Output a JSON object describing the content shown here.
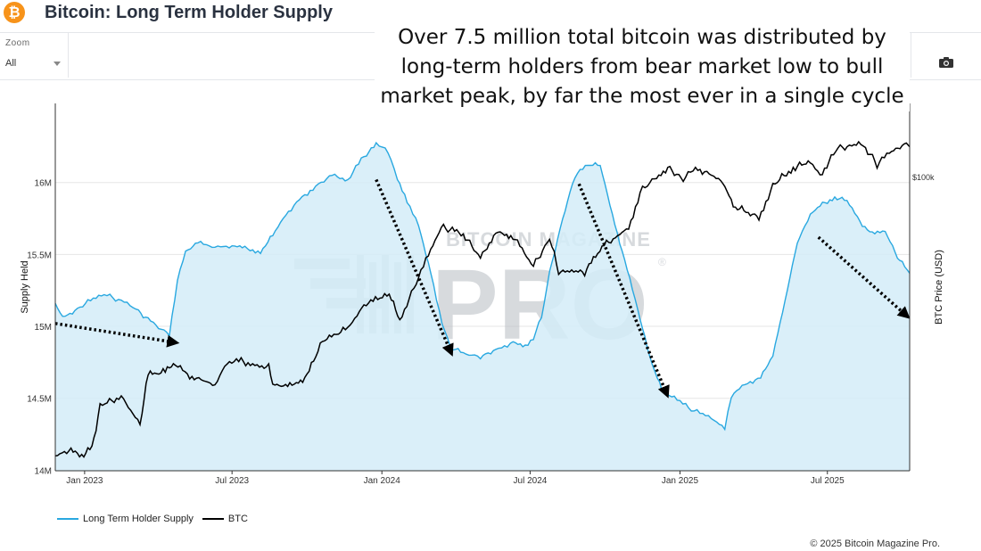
{
  "header": {
    "logo_glyph": "₿",
    "title": "Bitcoin: Long Term Holder Supply"
  },
  "toolbar": {
    "zoom_label": "Zoom",
    "zoom_value": "All"
  },
  "annotation": {
    "text": "Over 7.5 million total bitcoin was distributed by long-term holders from bear market low to bull market peak, by far the most ever in a single cycle"
  },
  "copyright": "© 2025 Bitcoin Magazine Pro.",
  "colors": {
    "lths_line": "#29a8e0",
    "lths_fill": "#d4ecf8",
    "btc_line": "#000000",
    "grid": "#e6e6e6",
    "watermark": "#b7bcc3",
    "logo": "#f7931a"
  },
  "chart_data": {
    "type": "area",
    "title": "Bitcoin: Long Term Holder Supply",
    "xlabel": "",
    "ylabel": "Supply Held",
    "ylabel_right": "BTC Price (USD)",
    "ylim": [
      13.996,
      16.55
    ],
    "y_ticks": [
      14.0,
      14.5,
      15.0,
      15.5,
      16.0
    ],
    "y_tick_labels": [
      "14M",
      "14.5M",
      "15M",
      "15.5M",
      "16M"
    ],
    "right_axis": {
      "scale": "log",
      "range": [
        15000,
        160000
      ],
      "ticks": [
        100000
      ],
      "tick_labels": [
        "$100k"
      ]
    },
    "x_ticks": [
      "2023-01-01",
      "2023-07-01",
      "2024-01-01",
      "2024-07-01",
      "2025-01-01",
      "2025-07-01"
    ],
    "x_tick_labels": [
      "Jan 2023",
      "Jul 2023",
      "Jan 2024",
      "Jul 2024",
      "Jan 2025",
      "Jul 2025"
    ],
    "x_range": [
      "2022-11-26",
      "2025-10-10"
    ],
    "series": [
      {
        "name": "Long Term Holder Supply",
        "axis": "left",
        "unit": "M BTC",
        "points": [
          [
            "2022-11-26",
            15.16
          ],
          [
            "2022-12-05",
            15.06
          ],
          [
            "2022-12-20",
            15.11
          ],
          [
            "2023-01-05",
            15.17
          ],
          [
            "2023-01-25",
            15.22
          ],
          [
            "2023-02-15",
            15.18
          ],
          [
            "2023-03-05",
            15.12
          ],
          [
            "2023-03-20",
            15.05
          ],
          [
            "2023-04-05",
            14.98
          ],
          [
            "2023-04-15",
            14.95
          ],
          [
            "2023-04-25",
            15.32
          ],
          [
            "2023-05-05",
            15.52
          ],
          [
            "2023-05-20",
            15.58
          ],
          [
            "2023-06-10",
            15.55
          ],
          [
            "2023-07-01",
            15.56
          ],
          [
            "2023-07-20",
            15.54
          ],
          [
            "2023-08-05",
            15.52
          ],
          [
            "2023-08-20",
            15.63
          ],
          [
            "2023-09-05",
            15.78
          ],
          [
            "2023-09-25",
            15.9
          ],
          [
            "2023-10-15",
            15.99
          ],
          [
            "2023-11-01",
            16.05
          ],
          [
            "2023-11-20",
            16.02
          ],
          [
            "2023-12-10",
            16.18
          ],
          [
            "2023-12-25",
            16.26
          ],
          [
            "2024-01-05",
            16.24
          ],
          [
            "2024-01-12",
            16.16
          ],
          [
            "2024-01-20",
            16.02
          ],
          [
            "2024-02-01",
            15.86
          ],
          [
            "2024-02-15",
            15.7
          ],
          [
            "2024-03-01",
            15.38
          ],
          [
            "2024-03-15",
            15.02
          ],
          [
            "2024-03-25",
            14.86
          ],
          [
            "2024-04-10",
            14.81
          ],
          [
            "2024-05-01",
            14.79
          ],
          [
            "2024-05-20",
            14.84
          ],
          [
            "2024-06-10",
            14.89
          ],
          [
            "2024-06-25",
            14.87
          ],
          [
            "2024-07-05",
            14.92
          ],
          [
            "2024-07-15",
            15.06
          ],
          [
            "2024-07-25",
            15.38
          ],
          [
            "2024-08-10",
            15.75
          ],
          [
            "2024-08-25",
            16.05
          ],
          [
            "2024-09-10",
            16.12
          ],
          [
            "2024-09-25",
            16.12
          ],
          [
            "2024-10-10",
            15.78
          ],
          [
            "2024-10-25",
            15.46
          ],
          [
            "2024-11-10",
            15.12
          ],
          [
            "2024-11-25",
            14.78
          ],
          [
            "2024-12-10",
            14.55
          ],
          [
            "2024-12-25",
            14.5
          ],
          [
            "2025-01-15",
            14.42
          ],
          [
            "2025-02-05",
            14.37
          ],
          [
            "2025-02-25",
            14.3
          ],
          [
            "2025-03-05",
            14.52
          ],
          [
            "2025-03-25",
            14.61
          ],
          [
            "2025-04-10",
            14.64
          ],
          [
            "2025-04-25",
            14.8
          ],
          [
            "2025-05-10",
            15.18
          ],
          [
            "2025-05-25",
            15.58
          ],
          [
            "2025-06-10",
            15.78
          ],
          [
            "2025-06-25",
            15.85
          ],
          [
            "2025-07-10",
            15.9
          ],
          [
            "2025-07-25",
            15.87
          ],
          [
            "2025-08-10",
            15.73
          ],
          [
            "2025-08-25",
            15.64
          ],
          [
            "2025-09-10",
            15.66
          ],
          [
            "2025-09-25",
            15.48
          ],
          [
            "2025-10-10",
            15.37
          ]
        ]
      },
      {
        "name": "BTC",
        "axis": "right",
        "unit": "USD",
        "points": [
          [
            "2022-11-26",
            16500
          ],
          [
            "2022-12-10",
            17100
          ],
          [
            "2022-12-31",
            16600
          ],
          [
            "2023-01-10",
            17400
          ],
          [
            "2023-01-20",
            22700
          ],
          [
            "2023-02-15",
            24300
          ],
          [
            "2023-03-10",
            20200
          ],
          [
            "2023-03-20",
            27800
          ],
          [
            "2023-04-10",
            28300
          ],
          [
            "2023-04-20",
            29900
          ],
          [
            "2023-05-10",
            27700
          ],
          [
            "2023-06-10",
            26100
          ],
          [
            "2023-06-25",
            30300
          ],
          [
            "2023-07-15",
            30300
          ],
          [
            "2023-08-15",
            29200
          ],
          [
            "2023-08-20",
            26100
          ],
          [
            "2023-09-10",
            25800
          ],
          [
            "2023-10-01",
            27600
          ],
          [
            "2023-10-20",
            34500
          ],
          [
            "2023-11-20",
            37500
          ],
          [
            "2023-12-10",
            43700
          ],
          [
            "2024-01-10",
            46500
          ],
          [
            "2024-01-23",
            39700
          ],
          [
            "2024-02-15",
            52000
          ],
          [
            "2024-03-01",
            62000
          ],
          [
            "2024-03-14",
            72000
          ],
          [
            "2024-04-10",
            69000
          ],
          [
            "2024-05-01",
            59000
          ],
          [
            "2024-05-20",
            70000
          ],
          [
            "2024-06-10",
            68000
          ],
          [
            "2024-07-05",
            56000
          ],
          [
            "2024-07-25",
            67000
          ],
          [
            "2024-08-05",
            54000
          ],
          [
            "2024-09-06",
            54000
          ],
          [
            "2024-09-30",
            64000
          ],
          [
            "2024-10-30",
            72000
          ],
          [
            "2024-11-13",
            90000
          ],
          [
            "2024-11-25",
            96000
          ],
          [
            "2024-12-17",
            106000
          ],
          [
            "2025-01-05",
            98000
          ],
          [
            "2025-01-20",
            106000
          ],
          [
            "2025-02-20",
            98000
          ],
          [
            "2025-03-10",
            82000
          ],
          [
            "2025-04-08",
            77000
          ],
          [
            "2025-04-25",
            94000
          ],
          [
            "2025-05-20",
            106000
          ],
          [
            "2025-06-10",
            109000
          ],
          [
            "2025-06-22",
            101000
          ],
          [
            "2025-07-14",
            120000
          ],
          [
            "2025-08-14",
            123000
          ],
          [
            "2025-08-31",
            108000
          ],
          [
            "2025-09-15",
            116000
          ],
          [
            "2025-10-06",
            124000
          ],
          [
            "2025-10-10",
            121000
          ]
        ]
      }
    ],
    "arrows": [
      {
        "from": [
          "2022-11-26",
          15.02
        ],
        "to": [
          "2023-04-20",
          14.89
        ]
      },
      {
        "from": [
          "2023-12-25",
          16.02
        ],
        "to": [
          "2024-03-25",
          14.83
        ]
      },
      {
        "from": [
          "2024-08-30",
          15.99
        ],
        "to": [
          "2024-12-15",
          14.54
        ]
      },
      {
        "from": [
          "2025-06-20",
          15.62
        ],
        "to": [
          "2025-10-05",
          15.08
        ]
      }
    ],
    "watermark": {
      "arc_text": "BITCOIN MAGAZINE",
      "big_text": "PRO",
      "mark": "®"
    },
    "legend": [
      "Long Term Holder Supply",
      "BTC"
    ],
    "legend_position": "bottom-left",
    "grid": true
  }
}
